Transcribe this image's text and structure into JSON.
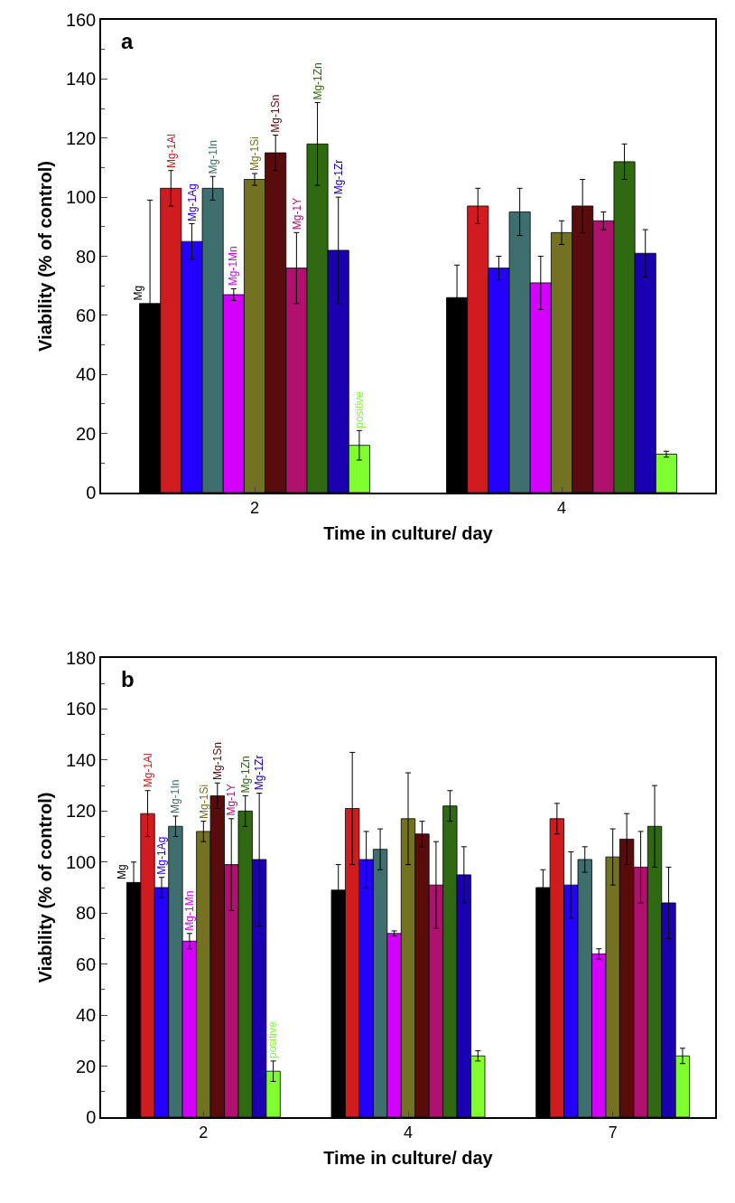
{
  "chart_data": [
    {
      "type": "bar",
      "annotations": [
        "a"
      ],
      "xlabel": "Time in culture/ day",
      "ylabel": "Viability (% of control)",
      "categories": [
        "2",
        "4"
      ],
      "ylim": [
        0,
        160
      ],
      "yticks": [
        0,
        20,
        40,
        60,
        80,
        100,
        120,
        140,
        160
      ],
      "grid": false,
      "legend": false,
      "series": [
        {
          "name": "Mg",
          "color": "#000000",
          "values": [
            64,
            66
          ],
          "errors": [
            35,
            11
          ]
        },
        {
          "name": "Mg-1Al",
          "color": "#d01c1f",
          "values": [
            103,
            97
          ],
          "errors": [
            6,
            6
          ]
        },
        {
          "name": "Mg-1Ag",
          "color": "#2400ff",
          "values": [
            85,
            76
          ],
          "errors": [
            6,
            4
          ]
        },
        {
          "name": "Mg-1In",
          "color": "#3e6e6e",
          "values": [
            103,
            95
          ],
          "errors": [
            4,
            8
          ]
        },
        {
          "name": "Mg-1Mn",
          "color": "#d400ff",
          "values": [
            67,
            71
          ],
          "errors": [
            2,
            9
          ]
        },
        {
          "name": "Mg-1Si",
          "color": "#727220",
          "values": [
            106,
            88
          ],
          "errors": [
            2,
            4
          ]
        },
        {
          "name": "Mg-1Sn",
          "color": "#5a0c0c",
          "values": [
            115,
            97
          ],
          "errors": [
            6,
            9
          ]
        },
        {
          "name": "Mg-1Y",
          "color": "#b0106e",
          "values": [
            76,
            92
          ],
          "errors": [
            12,
            3
          ]
        },
        {
          "name": "Mg-1Zn",
          "color": "#2f6a12",
          "values": [
            118,
            112
          ],
          "errors": [
            14,
            6
          ]
        },
        {
          "name": "Mg-1Zr",
          "color": "#1a00b0",
          "values": [
            82,
            81
          ],
          "errors": [
            18,
            8
          ]
        },
        {
          "name": "positive",
          "color": "#80ff30",
          "values": [
            16,
            13
          ],
          "errors": [
            5,
            1
          ]
        }
      ]
    },
    {
      "type": "bar",
      "annotations": [
        "b"
      ],
      "xlabel": "Time in culture/ day",
      "ylabel": "Viability (% of control)",
      "categories": [
        "2",
        "4",
        "7"
      ],
      "ylim": [
        0,
        180
      ],
      "yticks": [
        0,
        20,
        40,
        60,
        80,
        100,
        120,
        140,
        160,
        180
      ],
      "grid": false,
      "legend": false,
      "series": [
        {
          "name": "Mg",
          "color": "#000000",
          "values": [
            92,
            89,
            90
          ],
          "errors": [
            8,
            10,
            7
          ]
        },
        {
          "name": "Mg-1Al",
          "color": "#d01c1f",
          "values": [
            119,
            121,
            117
          ],
          "errors": [
            9,
            22,
            6
          ]
        },
        {
          "name": "Mg-1Ag",
          "color": "#2400ff",
          "values": [
            90,
            101,
            91
          ],
          "errors": [
            4,
            11,
            13
          ]
        },
        {
          "name": "Mg-1In",
          "color": "#3e6e6e",
          "values": [
            114,
            105,
            101
          ],
          "errors": [
            4,
            8,
            5
          ]
        },
        {
          "name": "Mg-1Mn",
          "color": "#d400ff",
          "values": [
            69,
            72,
            64
          ],
          "errors": [
            3,
            1,
            2
          ]
        },
        {
          "name": "Mg-1Si",
          "color": "#727220",
          "values": [
            112,
            117,
            102
          ],
          "errors": [
            4,
            18,
            11
          ]
        },
        {
          "name": "Mg-1Sn",
          "color": "#5a0c0c",
          "values": [
            126,
            111,
            109
          ],
          "errors": [
            5,
            5,
            10
          ]
        },
        {
          "name": "Mg-1Y",
          "color": "#b0106e",
          "values": [
            99,
            91,
            98
          ],
          "errors": [
            18,
            17,
            14
          ]
        },
        {
          "name": "Mg-1Zn",
          "color": "#2f6a12",
          "values": [
            120,
            122,
            114
          ],
          "errors": [
            6,
            6,
            16
          ]
        },
        {
          "name": "Mg-1Zr",
          "color": "#1a00b0",
          "values": [
            101,
            95,
            84
          ],
          "errors": [
            26,
            11,
            14
          ]
        },
        {
          "name": "positive",
          "color": "#80ff30",
          "values": [
            18,
            24,
            24
          ],
          "errors": [
            4,
            2,
            3
          ]
        }
      ]
    }
  ]
}
